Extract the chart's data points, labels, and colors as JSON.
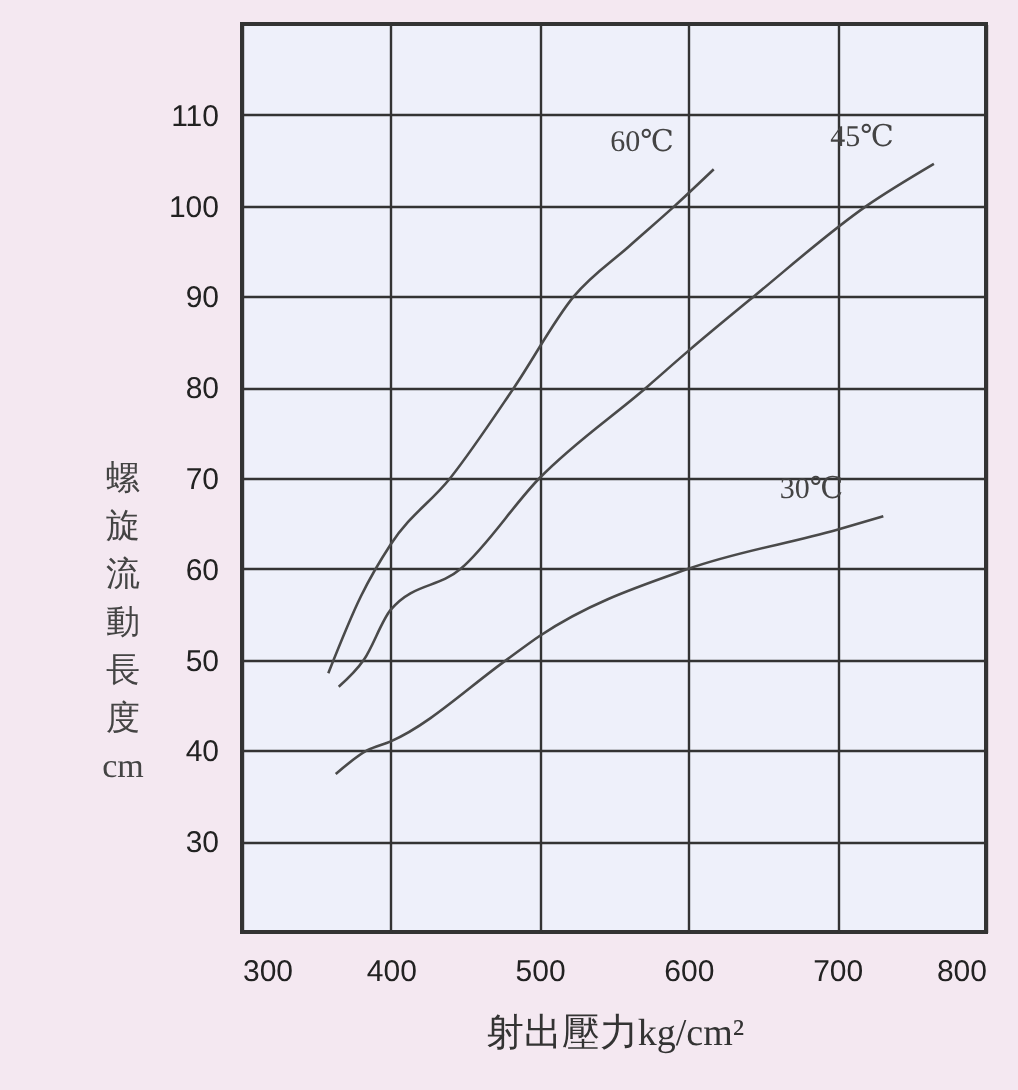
{
  "chart_data": {
    "type": "line",
    "xlabel": "射出壓力kg/cm²",
    "ylabel": "螺旋流動長度 cm",
    "xlim": [
      300,
      800
    ],
    "xticks": [
      300,
      400,
      500,
      600,
      700,
      800
    ],
    "ylim": [
      20,
      120
    ],
    "yticks": [
      30,
      40,
      50,
      60,
      70,
      80,
      90,
      100,
      110
    ],
    "grid": true,
    "marker": "none",
    "line_style": "solid",
    "series": [
      {
        "name": "60℃",
        "color": "#4a4a4a",
        "x": [
          358,
          380,
          400,
          440,
          483,
          523,
          560,
          591,
          617
        ],
        "values": [
          48.5,
          57,
          62.7,
          70,
          80,
          90,
          95.5,
          100,
          104
        ]
      },
      {
        "name": "45℃",
        "color": "#4a4a4a",
        "x": [
          365,
          382,
          400,
          447,
          500,
          572,
          600,
          644,
          720,
          765
        ],
        "values": [
          47,
          50,
          55.5,
          60,
          70,
          80,
          84,
          90,
          100,
          104.6
        ]
      },
      {
        "name": "30℃",
        "color": "#4a4a4a",
        "x": [
          363,
          384,
          400,
          478,
          500,
          600,
          700,
          731
        ],
        "values": [
          37.4,
          40,
          41,
          50,
          52.6,
          60,
          64.3,
          65.8
        ]
      }
    ]
  }
}
